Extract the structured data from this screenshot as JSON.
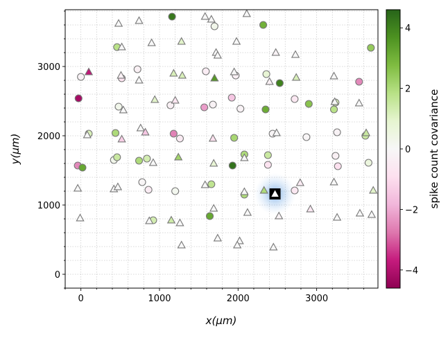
{
  "chart_data": {
    "type": "scatter",
    "xlabel": "x(μm)",
    "ylabel": "y(μm)",
    "xlim": [
      -200,
      3780
    ],
    "ylim": [
      -200,
      3820
    ],
    "x_ticks": [
      0,
      1000,
      2000,
      3000
    ],
    "x_tick_labels": [
      "0",
      "1000",
      "2000",
      "3000"
    ],
    "y_ticks": [
      0,
      1000,
      2000,
      3000
    ],
    "y_tick_labels": [
      "0",
      "1000",
      "2000",
      "3000"
    ],
    "x_minor_step": 200,
    "y_minor_step": 200,
    "grid": true,
    "colorbar": {
      "label": "spike count covariance",
      "range": [
        -4.6,
        4.6
      ],
      "ticks": [
        4,
        2,
        0,
        -2,
        -4
      ],
      "tick_labels": [
        "4",
        "2",
        "0",
        "−2",
        "−4"
      ],
      "colormap": "PiYG"
    },
    "reference": {
      "x": 2470,
      "y": 1160,
      "marker": "triangle",
      "color": "#ffffff"
    },
    "neurons": [
      {
        "x": 1160,
        "y": 3720,
        "m": "o",
        "v": 4.2
      },
      {
        "x": 2320,
        "y": 3600,
        "m": "o",
        "v": 3.0
      },
      {
        "x": 1700,
        "y": 3580,
        "m": "o",
        "v": 0.3
      },
      {
        "x": 460,
        "y": 3280,
        "m": "o",
        "v": 1.8
      },
      {
        "x": 3690,
        "y": 3270,
        "m": "o",
        "v": 2.4
      },
      {
        "x": 720,
        "y": 2960,
        "m": "o",
        "v": -0.3
      },
      {
        "x": 1590,
        "y": 2930,
        "m": "o",
        "v": -0.4
      },
      {
        "x": 2360,
        "y": 2890,
        "m": "o",
        "v": 0.8
      },
      {
        "x": 0,
        "y": 2850,
        "m": "o",
        "v": -0.2
      },
      {
        "x": 1970,
        "y": 2870,
        "m": "o",
        "v": -0.3
      },
      {
        "x": 520,
        "y": 2830,
        "m": "o",
        "v": -0.8
      },
      {
        "x": 2530,
        "y": 2760,
        "m": "o",
        "v": 4.0
      },
      {
        "x": 3540,
        "y": 2780,
        "m": "o",
        "v": -2.5
      },
      {
        "x": -30,
        "y": 2540,
        "m": "o",
        "v": -4.2
      },
      {
        "x": 1920,
        "y": 2550,
        "m": "o",
        "v": -1.5
      },
      {
        "x": 2720,
        "y": 2530,
        "m": "o",
        "v": -0.6
      },
      {
        "x": 2900,
        "y": 2460,
        "m": "o",
        "v": 2.6
      },
      {
        "x": 3240,
        "y": 2480,
        "m": "o",
        "v": 1.2
      },
      {
        "x": 3220,
        "y": 2380,
        "m": "o",
        "v": 1.8
      },
      {
        "x": 1140,
        "y": 2440,
        "m": "o",
        "v": -0.3
      },
      {
        "x": 480,
        "y": 2420,
        "m": "o",
        "v": 0.3
      },
      {
        "x": 1680,
        "y": 2450,
        "m": "o",
        "v": -0.2
      },
      {
        "x": 1570,
        "y": 2410,
        "m": "o",
        "v": -2.2
      },
      {
        "x": 2030,
        "y": 2390,
        "m": "o",
        "v": -0.2
      },
      {
        "x": 2350,
        "y": 2380,
        "m": "o",
        "v": 3.1
      },
      {
        "x": 100,
        "y": 2030,
        "m": "o",
        "v": 1.2
      },
      {
        "x": 440,
        "y": 2040,
        "m": "o",
        "v": 2.0
      },
      {
        "x": 1180,
        "y": 2030,
        "m": "o",
        "v": -2.6
      },
      {
        "x": 1260,
        "y": 1960,
        "m": "o",
        "v": -0.5
      },
      {
        "x": 1950,
        "y": 1970,
        "m": "o",
        "v": 2.1
      },
      {
        "x": 2440,
        "y": 2030,
        "m": "o",
        "v": -0.1
      },
      {
        "x": 2870,
        "y": 1980,
        "m": "o",
        "v": -0.1
      },
      {
        "x": 3260,
        "y": 2050,
        "m": "o",
        "v": -0.2
      },
      {
        "x": 3620,
        "y": 2000,
        "m": "o",
        "v": 1.5
      },
      {
        "x": 420,
        "y": 1650,
        "m": "o",
        "v": 0.3
      },
      {
        "x": 460,
        "y": 1690,
        "m": "o",
        "v": 1.5
      },
      {
        "x": 740,
        "y": 1640,
        "m": "o",
        "v": 2.0
      },
      {
        "x": 840,
        "y": 1670,
        "m": "o",
        "v": 1.3
      },
      {
        "x": 2080,
        "y": 1730,
        "m": "o",
        "v": 2.0
      },
      {
        "x": 2380,
        "y": 1720,
        "m": "o",
        "v": 1.5
      },
      {
        "x": -40,
        "y": 1570,
        "m": "o",
        "v": -2.5
      },
      {
        "x": 20,
        "y": 1540,
        "m": "o",
        "v": 3.2
      },
      {
        "x": 1930,
        "y": 1570,
        "m": "o",
        "v": 4.3
      },
      {
        "x": 2380,
        "y": 1580,
        "m": "o",
        "v": -0.8
      },
      {
        "x": 3240,
        "y": 1710,
        "m": "o",
        "v": -0.3
      },
      {
        "x": 3270,
        "y": 1560,
        "m": "o",
        "v": -0.9
      },
      {
        "x": 3660,
        "y": 1610,
        "m": "o",
        "v": 0.6
      },
      {
        "x": 780,
        "y": 1330,
        "m": "o",
        "v": -0.1
      },
      {
        "x": 860,
        "y": 1220,
        "m": "o",
        "v": -0.5
      },
      {
        "x": 1200,
        "y": 1200,
        "m": "o",
        "v": 0.2
      },
      {
        "x": 1660,
        "y": 1300,
        "m": "o",
        "v": 1.7
      },
      {
        "x": 2080,
        "y": 1150,
        "m": "o",
        "v": 2.0
      },
      {
        "x": 2720,
        "y": 1210,
        "m": "o",
        "v": -0.6
      },
      {
        "x": 920,
        "y": 780,
        "m": "o",
        "v": 1.3
      },
      {
        "x": 1640,
        "y": 840,
        "m": "o",
        "v": 3.2
      },
      {
        "x": 480,
        "y": 3620,
        "m": "^",
        "v": 0.0
      },
      {
        "x": 740,
        "y": 3660,
        "m": "^",
        "v": 0.0
      },
      {
        "x": 1580,
        "y": 3720,
        "m": "^",
        "v": 0.0
      },
      {
        "x": 1660,
        "y": 3680,
        "m": "^",
        "v": 0.0
      },
      {
        "x": 2110,
        "y": 3760,
        "m": "^",
        "v": 0.0
      },
      {
        "x": 900,
        "y": 3340,
        "m": "^",
        "v": 0.0
      },
      {
        "x": 1280,
        "y": 3360,
        "m": "^",
        "v": 1.0
      },
      {
        "x": 520,
        "y": 3280,
        "m": "^",
        "v": 0.0
      },
      {
        "x": 1720,
        "y": 3200,
        "m": "^",
        "v": 0.0
      },
      {
        "x": 1740,
        "y": 3160,
        "m": "^",
        "v": 0.0
      },
      {
        "x": 1980,
        "y": 3360,
        "m": "^",
        "v": 0.0
      },
      {
        "x": 2480,
        "y": 3200,
        "m": "^",
        "v": -0.2
      },
      {
        "x": 2730,
        "y": 3170,
        "m": "^",
        "v": 0.0
      },
      {
        "x": 100,
        "y": 2920,
        "m": "^",
        "v": -3.8
      },
      {
        "x": 1180,
        "y": 2900,
        "m": "^",
        "v": 1.2
      },
      {
        "x": 1290,
        "y": 2870,
        "m": "^",
        "v": 1.2
      },
      {
        "x": 1700,
        "y": 2830,
        "m": "^",
        "v": 3.5
      },
      {
        "x": 1950,
        "y": 2920,
        "m": "^",
        "v": 0.0
      },
      {
        "x": 510,
        "y": 2870,
        "m": "^",
        "v": -0.3
      },
      {
        "x": 740,
        "y": 2800,
        "m": "^",
        "v": 0.0
      },
      {
        "x": 2400,
        "y": 2780,
        "m": "^",
        "v": -0.3
      },
      {
        "x": 2740,
        "y": 2840,
        "m": "^",
        "v": 1.2
      },
      {
        "x": 3220,
        "y": 2860,
        "m": "^",
        "v": 0.0
      },
      {
        "x": 940,
        "y": 2520,
        "m": "^",
        "v": 1.0
      },
      {
        "x": 1200,
        "y": 2510,
        "m": "^",
        "v": -0.7
      },
      {
        "x": 540,
        "y": 2370,
        "m": "^",
        "v": 0.0
      },
      {
        "x": 3230,
        "y": 2490,
        "m": "^",
        "v": 0.0
      },
      {
        "x": 3540,
        "y": 2470,
        "m": "^",
        "v": 0.0
      },
      {
        "x": 760,
        "y": 2110,
        "m": "^",
        "v": 0.0
      },
      {
        "x": 820,
        "y": 2050,
        "m": "^",
        "v": -1.5
      },
      {
        "x": 520,
        "y": 1950,
        "m": "^",
        "v": -1.3
      },
      {
        "x": 1680,
        "y": 1960,
        "m": "^",
        "v": -0.9
      },
      {
        "x": 2490,
        "y": 2040,
        "m": "^",
        "v": 0.0
      },
      {
        "x": 80,
        "y": 2010,
        "m": "^",
        "v": 0.0
      },
      {
        "x": 3630,
        "y": 2040,
        "m": "^",
        "v": 1.5
      },
      {
        "x": 920,
        "y": 1610,
        "m": "^",
        "v": 0.0
      },
      {
        "x": 1240,
        "y": 1690,
        "m": "^",
        "v": 2.2
      },
      {
        "x": 1690,
        "y": 1600,
        "m": "^",
        "v": 0.8
      },
      {
        "x": 2080,
        "y": 1680,
        "m": "^",
        "v": 0.0
      },
      {
        "x": -40,
        "y": 1240,
        "m": "^",
        "v": 0.0
      },
      {
        "x": 420,
        "y": 1230,
        "m": "^",
        "v": 0.0
      },
      {
        "x": 470,
        "y": 1260,
        "m": "^",
        "v": 0.0
      },
      {
        "x": 1580,
        "y": 1290,
        "m": "^",
        "v": 0.0
      },
      {
        "x": 2330,
        "y": 1210,
        "m": "^",
        "v": 2.0
      },
      {
        "x": 2790,
        "y": 1320,
        "m": "^",
        "v": -0.5
      },
      {
        "x": 3220,
        "y": 1330,
        "m": "^",
        "v": 0.0
      },
      {
        "x": 3720,
        "y": 1210,
        "m": "^",
        "v": 1.0
      },
      {
        "x": 2080,
        "y": 1190,
        "m": "^",
        "v": 0.0
      },
      {
        "x": 1690,
        "y": 950,
        "m": "^",
        "v": 0.0
      },
      {
        "x": 2120,
        "y": 890,
        "m": "^",
        "v": 0.0
      },
      {
        "x": 2920,
        "y": 940,
        "m": "^",
        "v": -0.6
      },
      {
        "x": 3550,
        "y": 880,
        "m": "^",
        "v": 0.0
      },
      {
        "x": 3700,
        "y": 860,
        "m": "^",
        "v": 0.0
      },
      {
        "x": -10,
        "y": 810,
        "m": "^",
        "v": 0.0
      },
      {
        "x": 870,
        "y": 770,
        "m": "^",
        "v": 0.0
      },
      {
        "x": 1150,
        "y": 780,
        "m": "^",
        "v": 1.4
      },
      {
        "x": 1260,
        "y": 740,
        "m": "^",
        "v": 0.0
      },
      {
        "x": 2520,
        "y": 840,
        "m": "^",
        "v": -0.2
      },
      {
        "x": 3260,
        "y": 820,
        "m": "^",
        "v": 0.0
      },
      {
        "x": 1740,
        "y": 520,
        "m": "^",
        "v": 0.0
      },
      {
        "x": 2020,
        "y": 480,
        "m": "^",
        "v": 0.0
      },
      {
        "x": 1990,
        "y": 420,
        "m": "^",
        "v": 0.0
      },
      {
        "x": 1280,
        "y": 420,
        "m": "^",
        "v": 0.0
      },
      {
        "x": 2450,
        "y": 390,
        "m": "^",
        "v": 0.0
      }
    ]
  }
}
